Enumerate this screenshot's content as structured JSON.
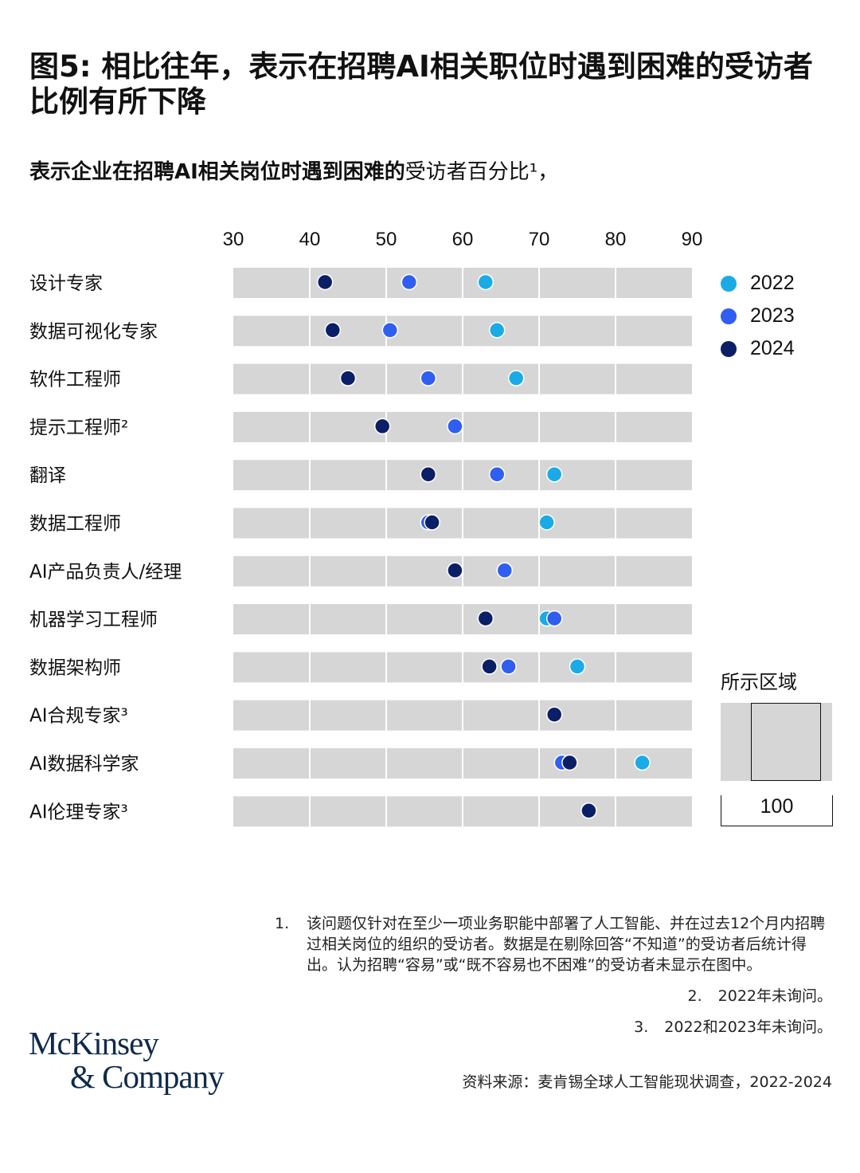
{
  "title": "图5: 相比往年，表示在招聘AI相关职位时遇到困难的受访者比例有所下降",
  "subtitle": {
    "bold": "表示企业在招聘AI相关岗位时遇到困难的",
    "light": "受访者百分比¹，"
  },
  "colors": {
    "2022": "#1aabe6",
    "2023": "#2f5ef0",
    "2024": "#0b1f66",
    "row_bg": "#d6d6d6"
  },
  "chart_data": {
    "type": "scatter",
    "xlim": [
      30,
      90
    ],
    "x_ticks": [
      30,
      40,
      50,
      60,
      70,
      80,
      90
    ],
    "categories": [
      "设计专家",
      "数据可视化专家",
      "软件工程师",
      "提示工程师²",
      "翻译",
      "数据工程师",
      "AI产品负责人/经理",
      "机器学习工程师",
      "数据架构师",
      "AI合规专家³",
      "AI数据科学家",
      "AI伦理专家³"
    ],
    "series": [
      {
        "name": "2022",
        "values": [
          63,
          64.5,
          67,
          null,
          72,
          71,
          65.5,
          71,
          75,
          null,
          83.5,
          null
        ]
      },
      {
        "name": "2023",
        "values": [
          53,
          50.5,
          55.5,
          59,
          64.5,
          55.5,
          65.5,
          72,
          66,
          null,
          73,
          null
        ]
      },
      {
        "name": "2024",
        "values": [
          42,
          43,
          45,
          49.5,
          55.5,
          56,
          59,
          63,
          63.5,
          72,
          74,
          76.5
        ]
      }
    ],
    "legend_position": "right"
  },
  "legend": [
    {
      "label": "2022",
      "color": "#1aabe6"
    },
    {
      "label": "2023",
      "color": "#2f5ef0"
    },
    {
      "label": "2024",
      "color": "#0b1f66"
    }
  ],
  "region": {
    "label": "所示区域",
    "value": "100"
  },
  "footnotes": [
    {
      "num": "1.",
      "text": "该问题仅针对在至少一项业务职能中部署了人工智能、并在过去12个月内招聘过相关岗位的组织的受访者。数据是在剔除回答“不知道”的受访者后统计得出。认为招聘“容易”或“既不容易也不困难”的受访者未显示在图中。"
    },
    {
      "num": "2.",
      "text": "2022年未询问。"
    },
    {
      "num": "3.",
      "text": "2022和2023年未询问。"
    }
  ],
  "source": "资料来源：麦肯锡全球人工智能现状调查，2022-2024",
  "logo": {
    "line1": "McKinsey",
    "line2": "& Company"
  }
}
